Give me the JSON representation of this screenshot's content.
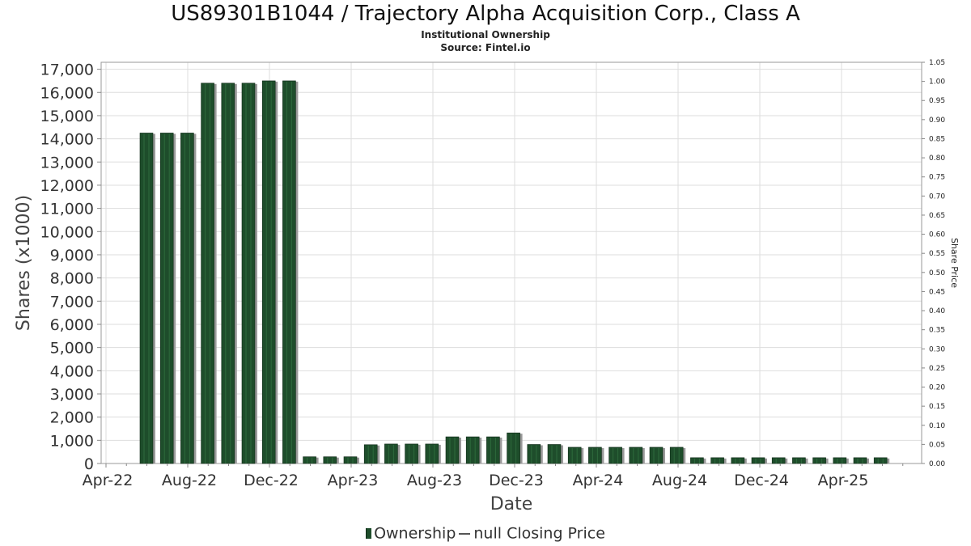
{
  "title": "US89301B1044 / Trajectory Alpha Acquisition Corp., Class A",
  "subtitle": "Institutional Ownership",
  "source": "Source: Fintel.io",
  "legend": {
    "ownership": "Ownership",
    "price": "null Closing Price"
  },
  "colors": {
    "bar": "#1e4d2b",
    "bar_shadow": "#9a9a9a",
    "grid": "#dddddd"
  },
  "chart_data": {
    "type": "bar",
    "xlabel": "Date",
    "ylabel": "Shares (x1000)",
    "y2label": "Share Price",
    "ylim": [
      0,
      17300
    ],
    "y2lim": [
      0,
      1.05
    ],
    "yticks": [
      "0",
      "1,000",
      "2,000",
      "3,000",
      "4,000",
      "5,000",
      "6,000",
      "7,000",
      "8,000",
      "9,000",
      "10,000",
      "11,000",
      "12,000",
      "13,000",
      "14,000",
      "15,000",
      "16,000",
      "17,000"
    ],
    "y2ticks": [
      "0.00",
      "0.05",
      "0.10",
      "0.15",
      "0.20",
      "0.25",
      "0.30",
      "0.35",
      "0.40",
      "0.45",
      "0.50",
      "0.55",
      "0.60",
      "0.65",
      "0.70",
      "0.75",
      "0.80",
      "0.85",
      "0.90",
      "0.95",
      "1.00",
      "1.05"
    ],
    "xticks": [
      "Apr-22",
      "Aug-22",
      "Dec-22",
      "Apr-23",
      "Aug-23",
      "Dec-23",
      "Apr-24",
      "Aug-24",
      "Dec-24",
      "Apr-25"
    ],
    "grid": true,
    "legend_position": "bottom",
    "series": [
      {
        "name": "Ownership",
        "values": [
          14250,
          14250,
          14250,
          16400,
          16400,
          16400,
          16500,
          16500,
          290,
          290,
          290,
          810,
          840,
          840,
          840,
          1150,
          1150,
          1150,
          1320,
          820,
          820,
          700,
          700,
          700,
          700,
          700,
          700,
          250,
          250,
          250,
          250,
          250,
          250,
          250,
          250,
          250,
          250
        ]
      }
    ]
  }
}
